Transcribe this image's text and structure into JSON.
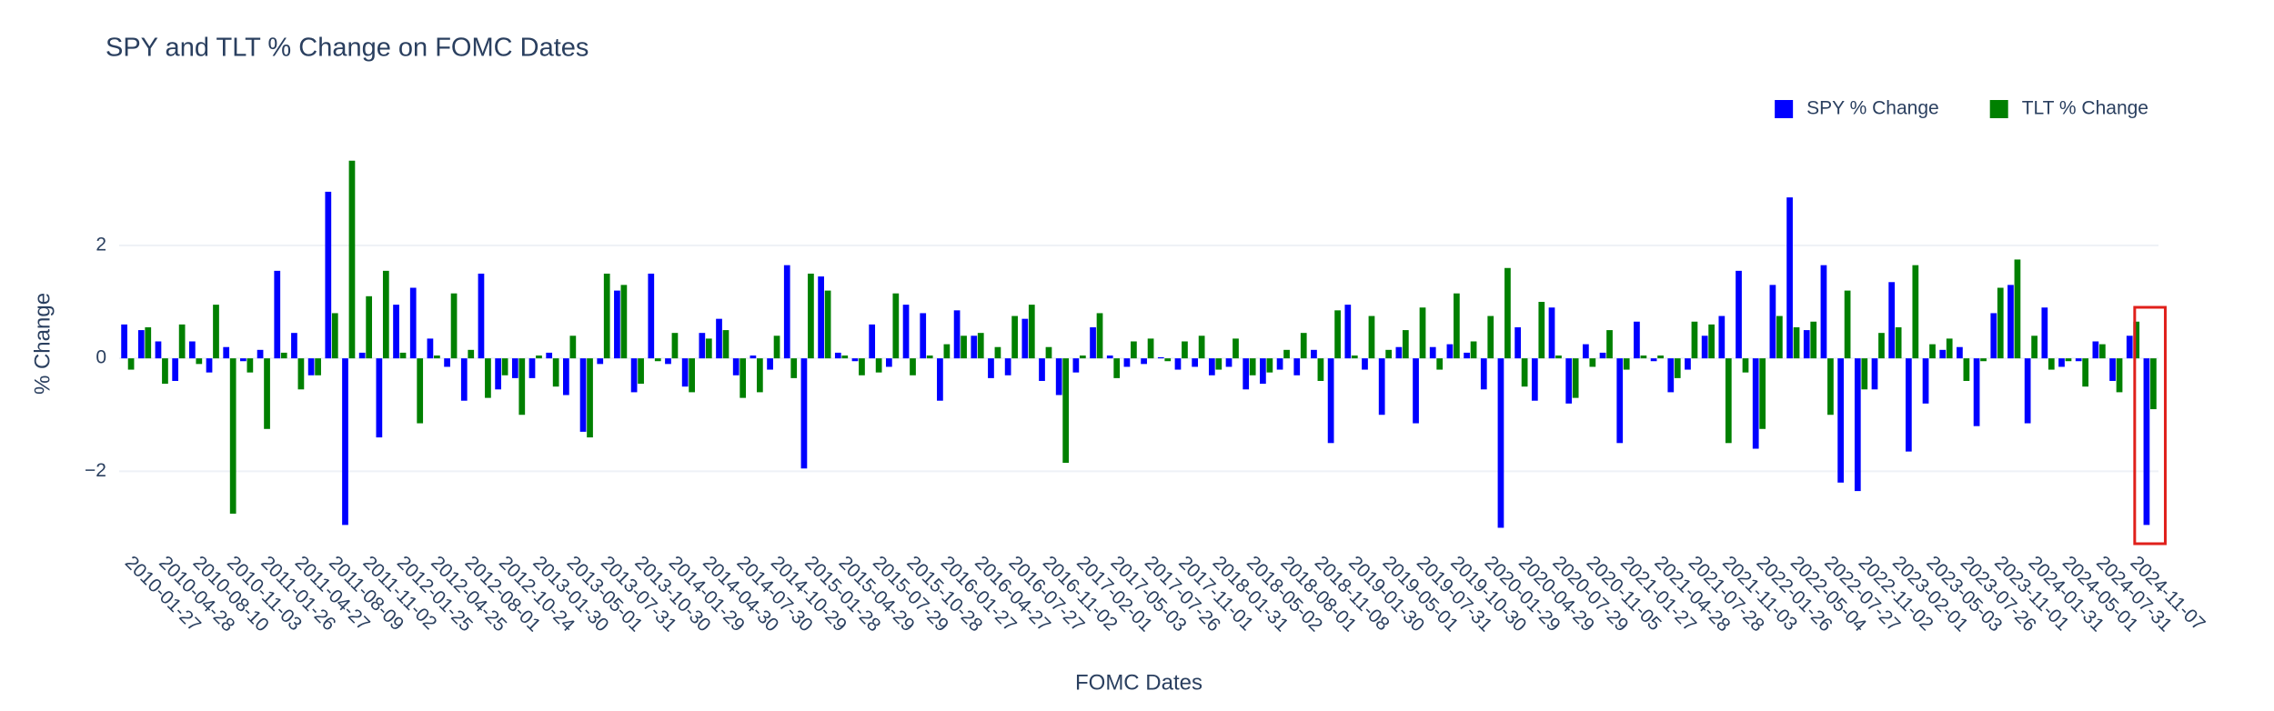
{
  "chart_data": {
    "type": "bar",
    "title": "SPY and TLT % Change on FOMC Dates",
    "x_label": "FOMC Dates",
    "y_label": "% Change",
    "legend": "top-right",
    "grid": true,
    "ylim": [
      -3.25,
      3.85
    ],
    "yticks": [
      {
        "value": -2,
        "label": "−2"
      },
      0,
      2
    ],
    "categories": [
      "2010-01-27",
      null,
      "2010-04-28",
      null,
      "2010-08-10",
      null,
      "2010-11-03",
      null,
      "2011-01-26",
      null,
      "2011-04-27",
      null,
      "2011-08-09",
      null,
      "2011-11-02",
      null,
      "2012-01-25",
      null,
      "2012-04-25",
      null,
      "2012-08-01",
      null,
      "2012-10-24",
      null,
      "2013-01-30",
      null,
      "2013-05-01",
      null,
      "2013-07-31",
      null,
      "2013-10-30",
      null,
      "2014-01-29",
      null,
      "2014-04-30",
      null,
      "2014-07-30",
      null,
      "2014-10-29",
      null,
      "2015-01-28",
      null,
      "2015-04-29",
      null,
      "2015-07-29",
      null,
      "2015-10-28",
      null,
      "2016-01-27",
      null,
      "2016-04-27",
      null,
      "2016-07-27",
      null,
      "2016-11-02",
      null,
      "2017-02-01",
      null,
      "2017-05-03",
      null,
      "2017-07-26",
      null,
      "2017-11-01",
      null,
      "2018-01-31",
      null,
      "2018-05-02",
      null,
      "2018-08-01",
      null,
      "2018-11-08",
      null,
      "2019-01-30",
      null,
      "2019-05-01",
      null,
      "2019-07-31",
      null,
      "2019-10-30",
      null,
      "2020-01-29",
      null,
      "2020-04-29",
      null,
      "2020-07-29",
      null,
      "2020-11-05",
      null,
      "2021-01-27",
      null,
      "2021-04-28",
      null,
      "2021-07-28",
      null,
      "2021-11-03",
      null,
      "2022-01-26",
      null,
      "2022-05-04",
      null,
      "2022-07-27",
      null,
      "2022-11-02",
      null,
      "2023-02-01",
      null,
      "2023-05-03",
      null,
      "2023-07-26",
      null,
      "2023-11-01",
      null,
      "2024-01-31",
      null,
      "2024-05-01",
      null,
      "2024-07-31",
      null,
      "2024-11-07",
      null
    ],
    "series": [
      {
        "name": "SPY % Change",
        "color": "#0000ff",
        "values": [
          0.6,
          0.5,
          0.3,
          -0.4,
          0.3,
          -0.25,
          0.2,
          -0.05,
          0.15,
          1.55,
          0.45,
          -0.3,
          2.95,
          -2.95,
          0.1,
          -1.4,
          0.95,
          1.25,
          0.35,
          -0.15,
          -0.75,
          1.5,
          -0.55,
          -0.35,
          -0.35,
          0.1,
          -0.65,
          -1.3,
          -0.1,
          1.2,
          -0.6,
          1.5,
          -0.1,
          -0.5,
          0.45,
          0.7,
          -0.3,
          0.05,
          -0.2,
          1.65,
          -1.95,
          1.45,
          0.1,
          -0.05,
          0.6,
          -0.15,
          0.95,
          0.8,
          -0.75,
          0.85,
          0.4,
          -0.35,
          -0.3,
          0.7,
          -0.4,
          -0.65,
          -0.25,
          0.55,
          0.05,
          -0.15,
          -0.1,
          0.02,
          -0.2,
          -0.15,
          -0.3,
          -0.15,
          -0.55,
          -0.45,
          -0.2,
          -0.3,
          0.15,
          -1.5,
          0.95,
          -0.2,
          -1.0,
          0.2,
          -1.15,
          0.2,
          0.25,
          0.1,
          -0.55,
          -3.0,
          0.55,
          -0.75,
          0.9,
          -0.8,
          0.25,
          0.1,
          -1.5,
          0.65,
          -0.05,
          -0.6,
          -0.2,
          0.4,
          0.75,
          1.55,
          -1.6,
          1.3,
          2.85,
          0.5,
          1.65,
          -2.2,
          -2.35,
          -0.55,
          1.35,
          -1.65,
          -0.8,
          0.15,
          0.2,
          -1.2,
          0.8,
          1.3,
          -1.15,
          0.9,
          -0.15,
          -0.05,
          0.3,
          -0.4,
          0.4,
          -2.95
        ]
      },
      {
        "name": "TLT % Change",
        "color": "#008000",
        "values": [
          -0.2,
          0.55,
          -0.45,
          0.6,
          -0.1,
          0.95,
          -2.75,
          -0.25,
          -1.25,
          0.1,
          -0.55,
          -0.3,
          0.8,
          3.5,
          1.1,
          1.55,
          0.1,
          -1.15,
          0.05,
          1.15,
          0.15,
          -0.7,
          -0.3,
          -1.0,
          0.05,
          -0.5,
          0.4,
          -1.4,
          1.5,
          1.3,
          -0.45,
          -0.05,
          0.45,
          -0.6,
          0.35,
          0.5,
          -0.7,
          -0.6,
          0.4,
          -0.35,
          1.5,
          1.2,
          0.05,
          -0.3,
          -0.25,
          1.15,
          -0.3,
          0.05,
          0.25,
          0.4,
          0.45,
          0.2,
          0.75,
          0.95,
          0.2,
          -1.85,
          0.05,
          0.8,
          -0.35,
          0.3,
          0.35,
          -0.05,
          0.3,
          0.4,
          -0.2,
          0.35,
          -0.3,
          -0.25,
          0.15,
          0.45,
          -0.4,
          0.85,
          0.05,
          0.75,
          0.15,
          0.5,
          0.9,
          -0.2,
          1.15,
          0.3,
          0.75,
          1.6,
          -0.5,
          1.0,
          0.05,
          -0.7,
          -0.15,
          0.5,
          -0.2,
          0.05,
          0.05,
          -0.35,
          0.65,
          0.6,
          -1.5,
          -0.25,
          -1.25,
          0.75,
          0.55,
          0.65,
          -1.0,
          1.2,
          -0.55,
          0.45,
          0.55,
          1.65,
          0.25,
          0.35,
          -0.4,
          -0.05,
          1.25,
          1.75,
          0.4,
          -0.2,
          -0.05,
          -0.5,
          0.25,
          -0.6,
          0.65,
          -0.9
        ]
      }
    ]
  }
}
